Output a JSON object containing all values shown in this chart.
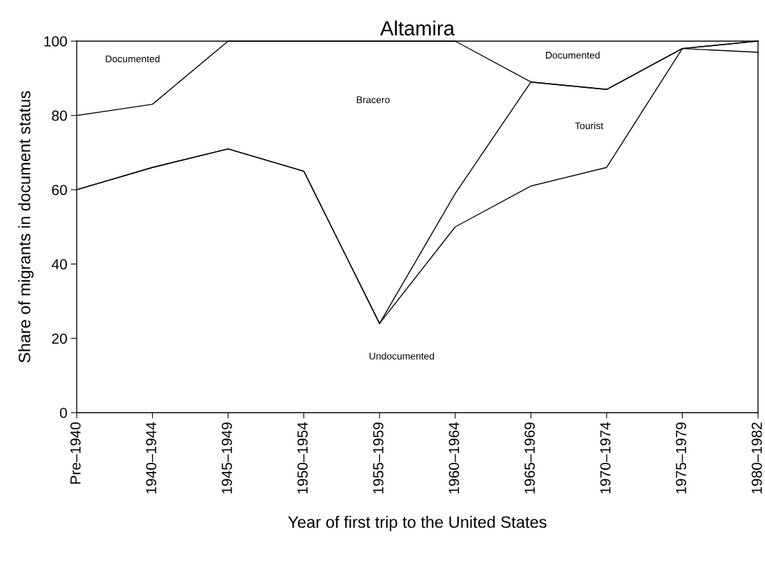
{
  "chart_data": {
    "type": "line",
    "title": "Altamira",
    "xlabel": "Year of first trip to the United States",
    "ylabel": "Share of migrants in document status",
    "categories": [
      "Pre–1940",
      "1940–1944",
      "1945–1949",
      "1950–1954",
      "1955–1959",
      "1960–1964",
      "1965–1969",
      "1970–1974",
      "1975–1979",
      "1980–1982"
    ],
    "series": [
      {
        "color": "#000000",
        "values": [
          60,
          66,
          71,
          65,
          24,
          50,
          61,
          66,
          98,
          97
        ]
      },
      {
        "color": "#000000",
        "values": [
          60,
          66,
          71,
          65,
          24,
          59,
          89,
          87,
          98,
          100
        ]
      },
      {
        "color": "#000000",
        "values": [
          80,
          83,
          100,
          100,
          100,
          100,
          89,
          87,
          98,
          100
        ]
      }
    ],
    "ylim": [
      0,
      100
    ],
    "yticks": [
      0,
      20,
      40,
      60,
      80,
      100
    ],
    "grid": false,
    "legend": false,
    "annotations": [
      "Documented",
      "Bracero",
      "Documented",
      "Tourist",
      "Undocumented"
    ]
  }
}
